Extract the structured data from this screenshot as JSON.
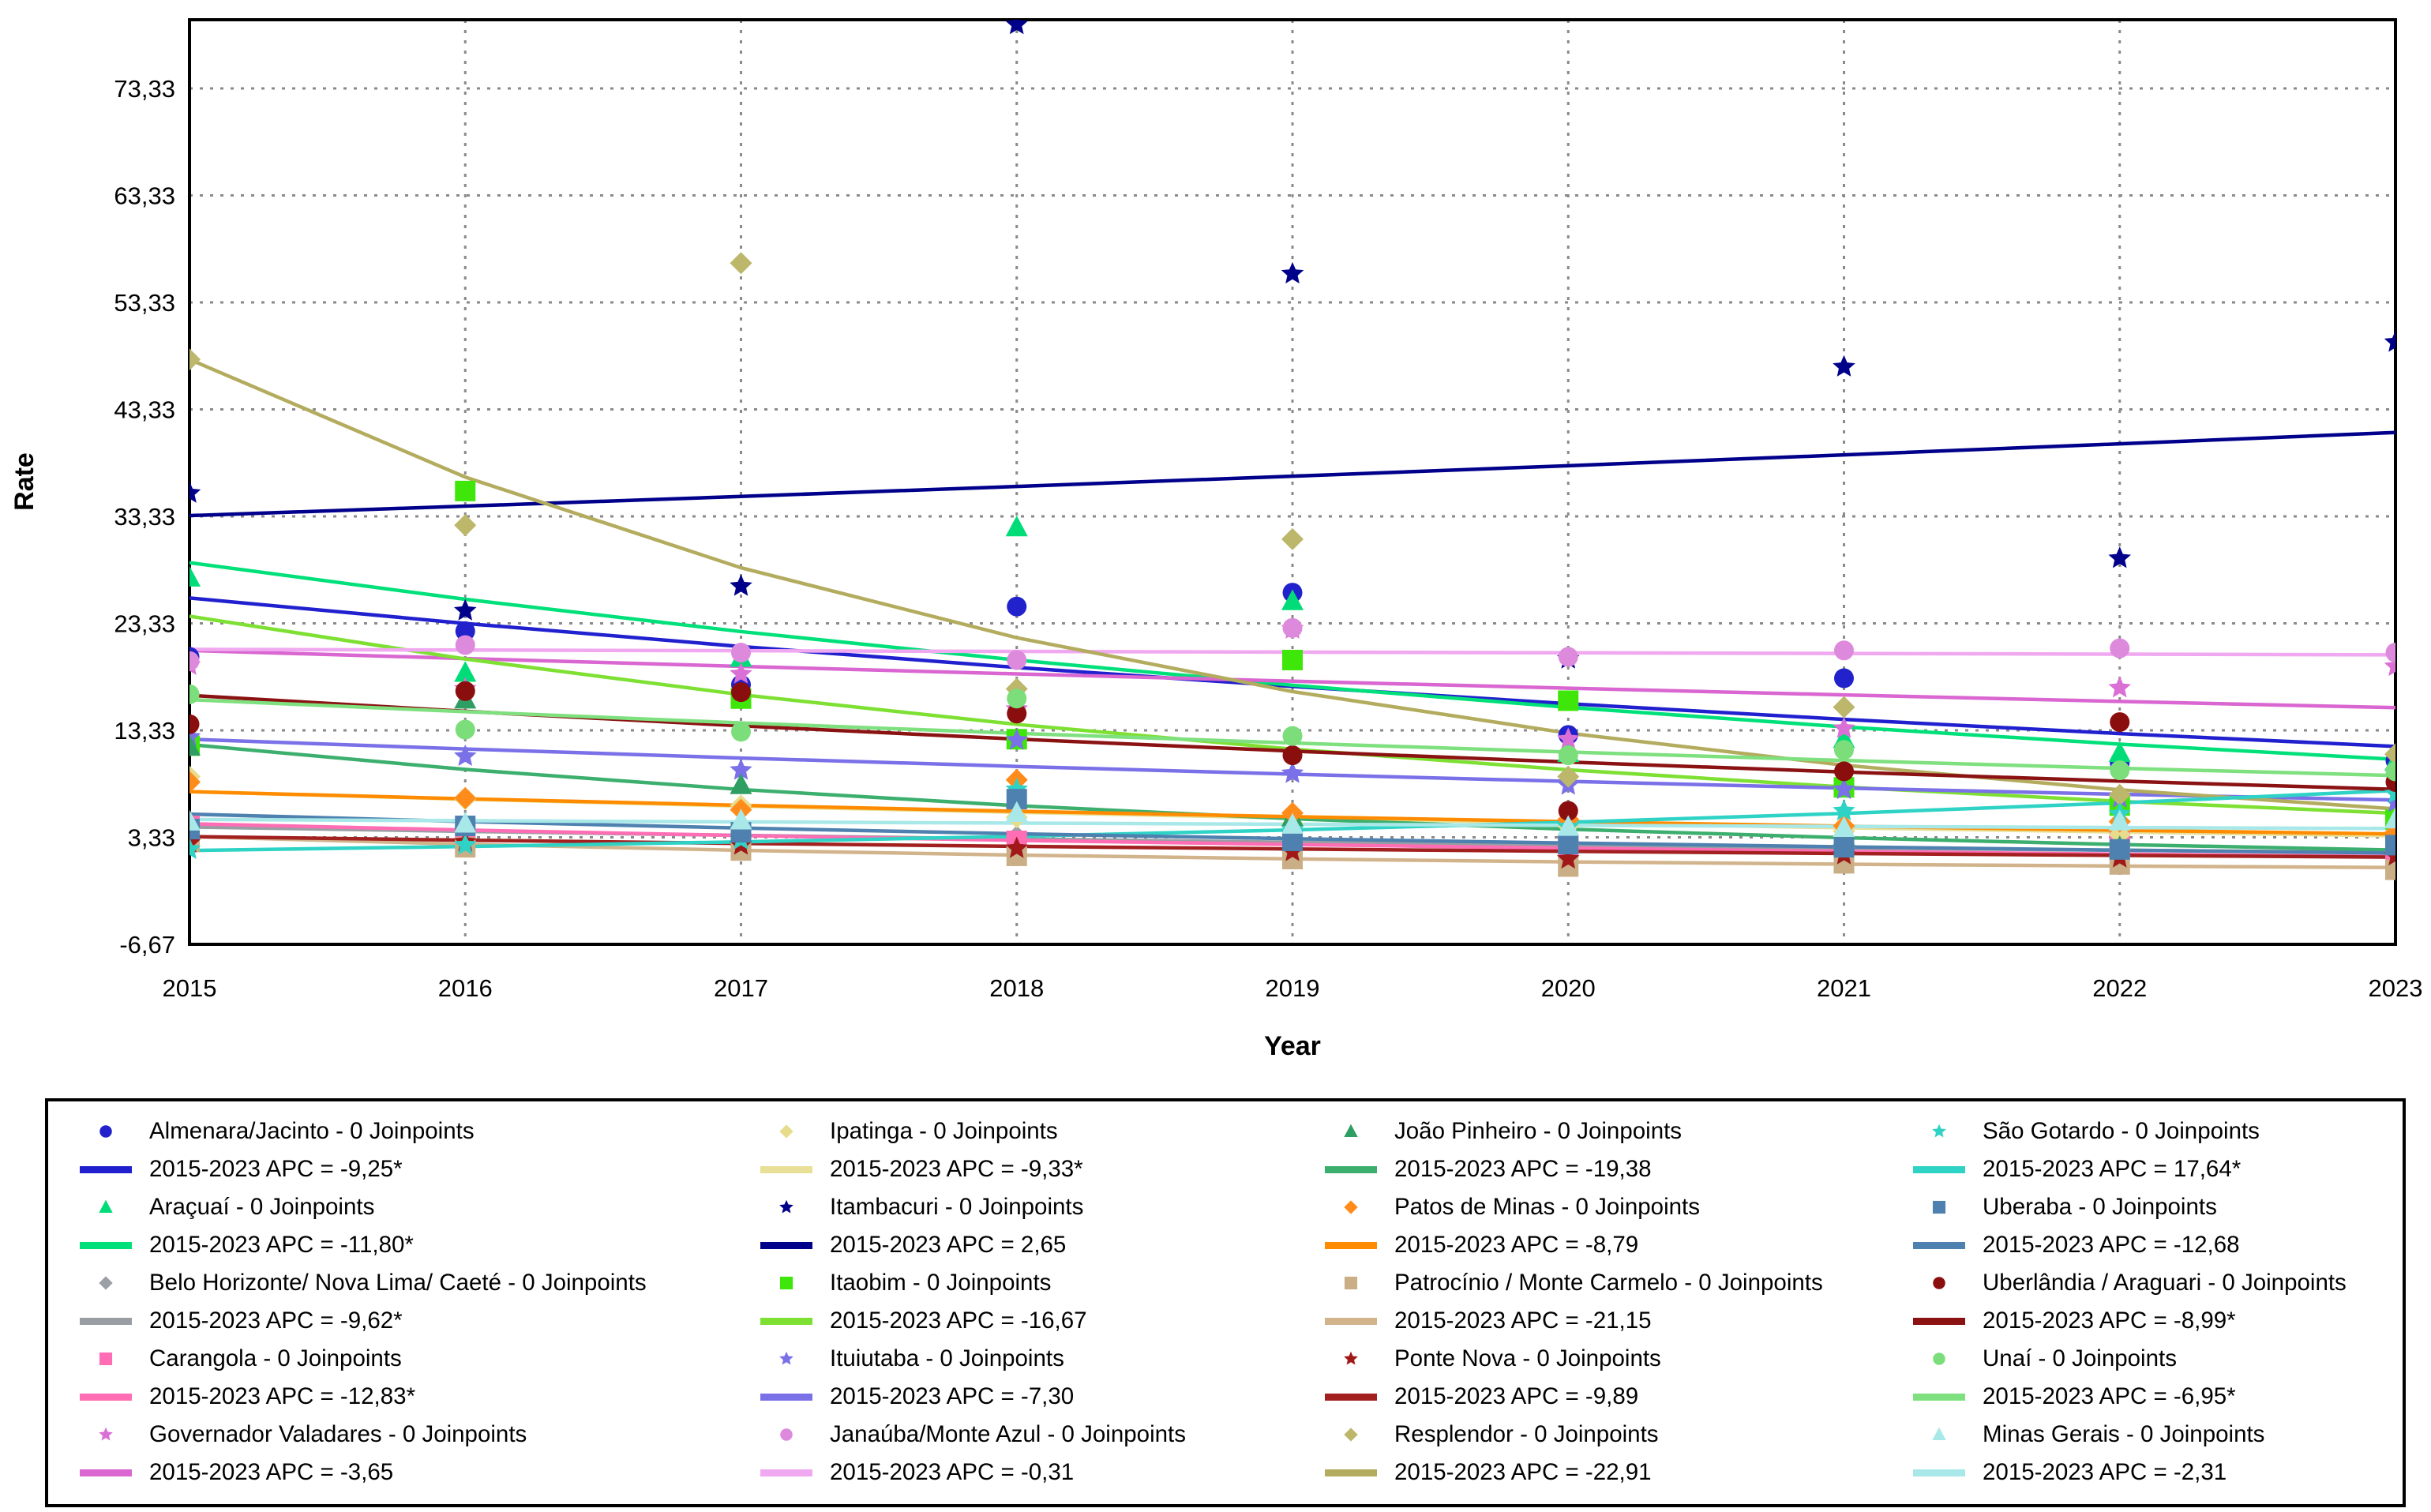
{
  "axes": {
    "x_label": "Year",
    "y_label": "Rate",
    "x_ticks": [
      "2015",
      "2016",
      "2017",
      "2018",
      "2019",
      "2020",
      "2021",
      "2022",
      "2023"
    ],
    "y_ticks": [
      {
        "value": 73.33,
        "label": "73,33"
      },
      {
        "value": 63.33,
        "label": "63,33"
      },
      {
        "value": 53.33,
        "label": "53,33"
      },
      {
        "value": 43.33,
        "label": "43,33"
      },
      {
        "value": 33.33,
        "label": "33,33"
      },
      {
        "value": 23.33,
        "label": "23,33"
      },
      {
        "value": 13.33,
        "label": "13,33"
      },
      {
        "value": 3.33,
        "label": "3,33"
      },
      {
        "value": -6.67,
        "label": "-6,67"
      }
    ],
    "ylim": [
      -6.67,
      79.75
    ],
    "xlim": [
      2015,
      2023
    ],
    "grid": "dotted"
  },
  "chart_data": {
    "type": "scatter",
    "title": "",
    "xlabel": "Year",
    "ylabel": "Rate",
    "x": [
      2015,
      2016,
      2017,
      2018,
      2019,
      2020,
      2021,
      2022,
      2023
    ],
    "legend_columns": 4,
    "legend_rows_per_column": 5,
    "series": [
      {
        "name": "Almenara/Jacinto",
        "legend_name": "Almenara/Jacinto - 0 Joinpoints",
        "apc_label": "2015-2023 APC  = -9,25*",
        "apc": -9.25,
        "fit_2015": 25.7,
        "marker": "circle",
        "marker_color": "#2222CC",
        "line_color": "#2020CF",
        "observed": [
          20.2,
          22.6,
          17.6,
          24.9,
          26.2,
          12.9,
          18.2,
          10.3,
          10.5
        ]
      },
      {
        "name": "Araçuaí",
        "legend_name": "Araçuaí - 0 Joinpoints",
        "apc_label": "2015-2023 APC  = -11,80*",
        "apc": -11.8,
        "fit_2015": 29.0,
        "marker": "triangle",
        "marker_color": "#00DD78",
        "line_color": "#00E07A",
        "observed": [
          27.6,
          18.7,
          20.1,
          32.3,
          25.4,
          11.2,
          12.5,
          11.2,
          10.4
        ]
      },
      {
        "name": "Belo Horizonte/ Nova Lima/ Caeté",
        "legend_name": "Belo Horizonte/ Nova Lima/ Caeté - 0 Joinpoints",
        "apc_label": "2015-2023 APC  = -9,62*",
        "apc": -9.62,
        "fit_2015": 4.3,
        "marker": "diamond",
        "marker_color": "#9AA0A6",
        "line_color": "#989EA3",
        "observed": [
          4.2,
          3.9,
          3.6,
          3.4,
          2.9,
          2.7,
          2.4,
          2.2,
          2.0
        ]
      },
      {
        "name": "Carangola",
        "legend_name": "Carangola - 0 Joinpoints",
        "apc_label": "2015-2023 APC  = -12,83*",
        "apc": -12.83,
        "fit_2015": 4.6,
        "marker": "square",
        "marker_color": "#FF6EB4",
        "line_color": "#FF6EB4",
        "observed": [
          4.4,
          3.6,
          3.3,
          3.0,
          2.4,
          2.6,
          1.9,
          2.9,
          1.6
        ]
      },
      {
        "name": "Governador Valadares",
        "legend_name": "Governador Valadares - 0 Joinpoints",
        "apc_label": "2015-2023 APC  = -3,65",
        "apc": -3.65,
        "fit_2015": 20.8,
        "marker": "star",
        "marker_color": "#DA70D6",
        "line_color": "#D966D1",
        "observed": [
          19.4,
          17.2,
          18.6,
          15.3,
          22.8,
          12.5,
          13.5,
          17.3,
          19.3
        ]
      },
      {
        "name": "Ipatinga",
        "legend_name": "Ipatinga - 0 Joinpoints",
        "apc_label": "2015-2023 APC  = -9,33*",
        "apc": -9.33,
        "fit_2015": 7.6,
        "marker": "diamond",
        "marker_color": "#E6DC8C",
        "line_color": "#E8E096",
        "observed": [
          9.0,
          6.9,
          6.3,
          5.2,
          4.6,
          4.4,
          3.9,
          3.6,
          3.3
        ]
      },
      {
        "name": "Itambacuri",
        "legend_name": "Itambacuri - 0 Joinpoints",
        "apc_label": "2015-2023 APC  = 2,65",
        "apc": 2.65,
        "fit_2015": 33.4,
        "marker": "star",
        "marker_color": "#00008B",
        "line_color": "#00008B",
        "observed": [
          35.5,
          24.5,
          26.8,
          79.3,
          56.0,
          20.0,
          47.3,
          29.4,
          49.6
        ]
      },
      {
        "name": "Itaobim",
        "legend_name": "Itaobim - 0 Joinpoints",
        "apc_label": "2015-2023 APC  = -16,67",
        "apc": -16.67,
        "fit_2015": 24.0,
        "marker": "square",
        "marker_color": "#3FE60A",
        "line_color": "#7EE033",
        "observed": [
          11.9,
          35.7,
          16.3,
          12.5,
          19.9,
          16.1,
          8.0,
          6.3,
          5.0
        ]
      },
      {
        "name": "Ituiutaba",
        "legend_name": "Ituiutaba - 0 Joinpoints",
        "apc_label": "2015-2023 APC  = -7,30",
        "apc": -7.3,
        "fit_2015": 12.5,
        "marker": "star",
        "marker_color": "#7A70E8",
        "line_color": "#7A70E8",
        "observed": [
          12.7,
          10.9,
          9.6,
          12.4,
          9.3,
          8.2,
          7.8,
          7.0,
          6.6
        ]
      },
      {
        "name": "Janaúba/Monte Azul",
        "legend_name": "Janaúba/Monte Azul - 0 Joinpoints",
        "apc_label": "2015-2023 APC  = -0,31",
        "apc": -0.31,
        "fit_2015": 20.9,
        "marker": "circle",
        "marker_color": "#DD8ADD",
        "line_color": "#F0A8F0",
        "observed": [
          19.8,
          21.3,
          20.6,
          19.9,
          22.9,
          20.2,
          20.8,
          21.0,
          20.6
        ]
      },
      {
        "name": "João Pinheiro",
        "legend_name": "João Pinheiro - 0 Joinpoints",
        "apc_label": "2015-2023 APC  = -19,38",
        "apc": -19.38,
        "fit_2015": 12.0,
        "marker": "triangle",
        "marker_color": "#2F9E63",
        "line_color": "#3CAF6E",
        "observed": [
          11.8,
          16.2,
          8.2,
          6.9,
          5.2,
          3.6,
          3.4,
          2.4,
          2.9
        ]
      },
      {
        "name": "Patos de Minas",
        "legend_name": "Patos de Minas - 0 Joinpoints",
        "apc_label": "2015-2023 APC  = -8,79",
        "apc": -8.79,
        "fit_2015": 7.6,
        "marker": "diamond",
        "marker_color": "#FF8C1A",
        "line_color": "#FF8C00",
        "observed": [
          8.5,
          7.0,
          5.9,
          8.7,
          5.6,
          5.0,
          4.4,
          4.8,
          3.8
        ]
      },
      {
        "name": "Patrocínio / Monte Carmelo",
        "legend_name": "Patrocínio / Monte Carmelo - 0 Joinpoints",
        "apc_label": "2015-2023 APC  = -21,15",
        "apc": -21.15,
        "fit_2015": 3.4,
        "marker": "square",
        "marker_color": "#C9AE86",
        "line_color": "#D2B48C",
        "observed": [
          2.9,
          2.4,
          2.1,
          1.6,
          1.3,
          0.6,
          0.9,
          0.8,
          0.3
        ]
      },
      {
        "name": "Ponte Nova",
        "legend_name": "Ponte Nova - 0 Joinpoints",
        "apc_label": "2015-2023 APC  = -9,89",
        "apc": -9.89,
        "fit_2015": 3.4,
        "marker": "star",
        "marker_color": "#A01818",
        "line_color": "#A22020",
        "observed": [
          2.8,
          2.9,
          2.6,
          2.3,
          2.0,
          1.3,
          1.7,
          1.4,
          1.6
        ]
      },
      {
        "name": "Resplendor",
        "legend_name": "Resplendor - 0 Joinpoints",
        "apc_label": "2015-2023 APC  = -22,91",
        "apc": -22.91,
        "fit_2015": 48.0,
        "marker": "diamond",
        "marker_color": "#BDB76B",
        "line_color": "#B3AC5F",
        "observed": [
          48.0,
          32.5,
          57.0,
          17.2,
          31.2,
          9.0,
          15.5,
          7.3,
          11.1
        ]
      },
      {
        "name": "São Gotardo",
        "legend_name": "São Gotardo - 0 Joinpoints",
        "apc_label": "2015-2023 APC  = 17,64*",
        "apc": 17.64,
        "fit_2015": 2.1,
        "marker": "star",
        "marker_color": "#2ED3C6",
        "line_color": "#2ED3C6",
        "observed": [
          2.2,
          2.6,
          3.1,
          7.8,
          4.0,
          4.3,
          5.8,
          5.5,
          7.4
        ]
      },
      {
        "name": "Uberaba",
        "legend_name": "Uberaba - 0 Joinpoints",
        "apc_label": "2015-2023 APC  = -12,68",
        "apc": -12.68,
        "fit_2015": 5.5,
        "marker": "square",
        "marker_color": "#4E81B0",
        "line_color": "#4E81B0",
        "observed": [
          4.1,
          4.4,
          3.8,
          6.9,
          3.0,
          2.7,
          2.4,
          2.2,
          2.6
        ]
      },
      {
        "name": "Uberlândia / Araguari",
        "legend_name": "Uberlândia / Araguari - 0 Joinpoints",
        "apc_label": "2015-2023 APC  = -8,99*",
        "apc": -8.99,
        "fit_2015": 16.6,
        "marker": "circle",
        "marker_color": "#8B0E0E",
        "line_color": "#8B1212",
        "observed": [
          13.9,
          17.0,
          16.9,
          14.9,
          11.0,
          5.8,
          9.5,
          14.1,
          8.5
        ]
      },
      {
        "name": "Unaí",
        "legend_name": "Unaí - 0 Joinpoints",
        "apc_label": "2015-2023 APC  = -6,95*",
        "apc": -6.95,
        "fit_2015": 16.2,
        "marker": "circle",
        "marker_color": "#7BDE7B",
        "line_color": "#7EE07E",
        "observed": [
          16.7,
          13.4,
          13.2,
          16.3,
          12.8,
          11.0,
          11.5,
          9.6,
          9.5
        ]
      },
      {
        "name": "Minas Gerais",
        "legend_name": "Minas Gerais - 0 Joinpoints",
        "apc_label": "2015-2023 APC  = -2,31",
        "apc": -2.31,
        "fit_2015": 5.0,
        "marker": "triangle",
        "marker_color": "#A9E8E8",
        "line_color": "#A9E8E8",
        "observed": [
          4.8,
          4.6,
          4.9,
          5.6,
          4.5,
          4.3,
          4.2,
          4.8,
          5.0
        ]
      }
    ]
  },
  "layout_note": "joinpoint regression output: observed points + log-linear fitted lines"
}
